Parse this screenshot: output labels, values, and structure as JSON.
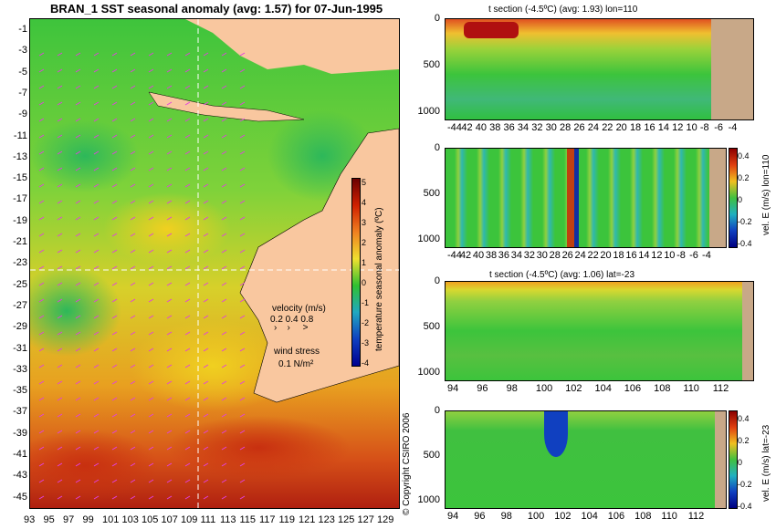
{
  "map": {
    "title": "BRAN_1 SST seasonal anomaly (avg: 1.57) for 07-Jun-1995",
    "lat_labels": [
      "-1",
      "-3",
      "-5",
      "-7",
      "-9",
      "-11",
      "-13",
      "-15",
      "-17",
      "-19",
      "-21",
      "-23",
      "-25",
      "-27",
      "-29",
      "-31",
      "-33",
      "-35",
      "-37",
      "-39",
      "-41",
      "-43",
      "-45"
    ],
    "lon_labels": [
      "93",
      "95",
      "97",
      "99",
      "101",
      "103",
      "105",
      "107",
      "109",
      "111",
      "113",
      "115",
      "117",
      "119",
      "121",
      "123",
      "125",
      "127",
      "129"
    ],
    "colorbar_label": "temperature seasonal anomaly (ºC)",
    "colorbar_ticks": [
      "5",
      "4",
      "3",
      "2",
      "1",
      "0",
      "-1",
      "-2",
      "-3",
      "-4"
    ],
    "velocity_legend": {
      "title": "velocity (m/s)",
      "values": "0.2 0.4 0.8"
    },
    "wind_legend": {
      "title": "wind stress",
      "value": "0.1 N/m²"
    },
    "copyright": "© Copyright CSIRO 2006"
  },
  "panels": [
    {
      "title": "t section (-4.5ºC) (avg: 1.93) lon=110",
      "depth_ticks": [
        "0",
        "500",
        "1000"
      ],
      "x_ticks": [
        "-44",
        "42",
        "40",
        "38",
        "36",
        "34",
        "32",
        "30",
        "28",
        "26",
        "24",
        "22",
        "20",
        "18",
        "16",
        "14",
        "12",
        "10",
        "-8",
        "-6",
        "-4"
      ]
    },
    {
      "title": "",
      "depth_ticks": [
        "0",
        "500",
        "1000"
      ],
      "x_ticks": [
        "-44",
        "42",
        "40",
        "38",
        "36",
        "34",
        "32",
        "30",
        "28",
        "26",
        "24",
        "22",
        "20",
        "18",
        "16",
        "14",
        "12",
        "10",
        "-8",
        "-6",
        "-4"
      ],
      "colorbar_ticks": [
        "0.4",
        "0.2",
        "0",
        "-0.2",
        "-0.4"
      ],
      "colorbar_label": "vel. E (m/s) lon=110"
    },
    {
      "title": "t section (-4.5ºC) (avg: 1.06) lat=-23",
      "depth_ticks": [
        "0",
        "500",
        "1000"
      ],
      "x_ticks": [
        "94",
        "96",
        "98",
        "100",
        "102",
        "104",
        "106",
        "108",
        "110",
        "112"
      ]
    },
    {
      "title": "",
      "depth_ticks": [
        "0",
        "500",
        "1000"
      ],
      "x_ticks": [
        "94",
        "96",
        "98",
        "100",
        "102",
        "104",
        "106",
        "108",
        "110",
        "112"
      ],
      "colorbar_ticks": [
        "0.4",
        "0.2",
        "0",
        "-0.2",
        "-0.4"
      ],
      "colorbar_label": "vel. E (m/s) lat=-23"
    }
  ]
}
